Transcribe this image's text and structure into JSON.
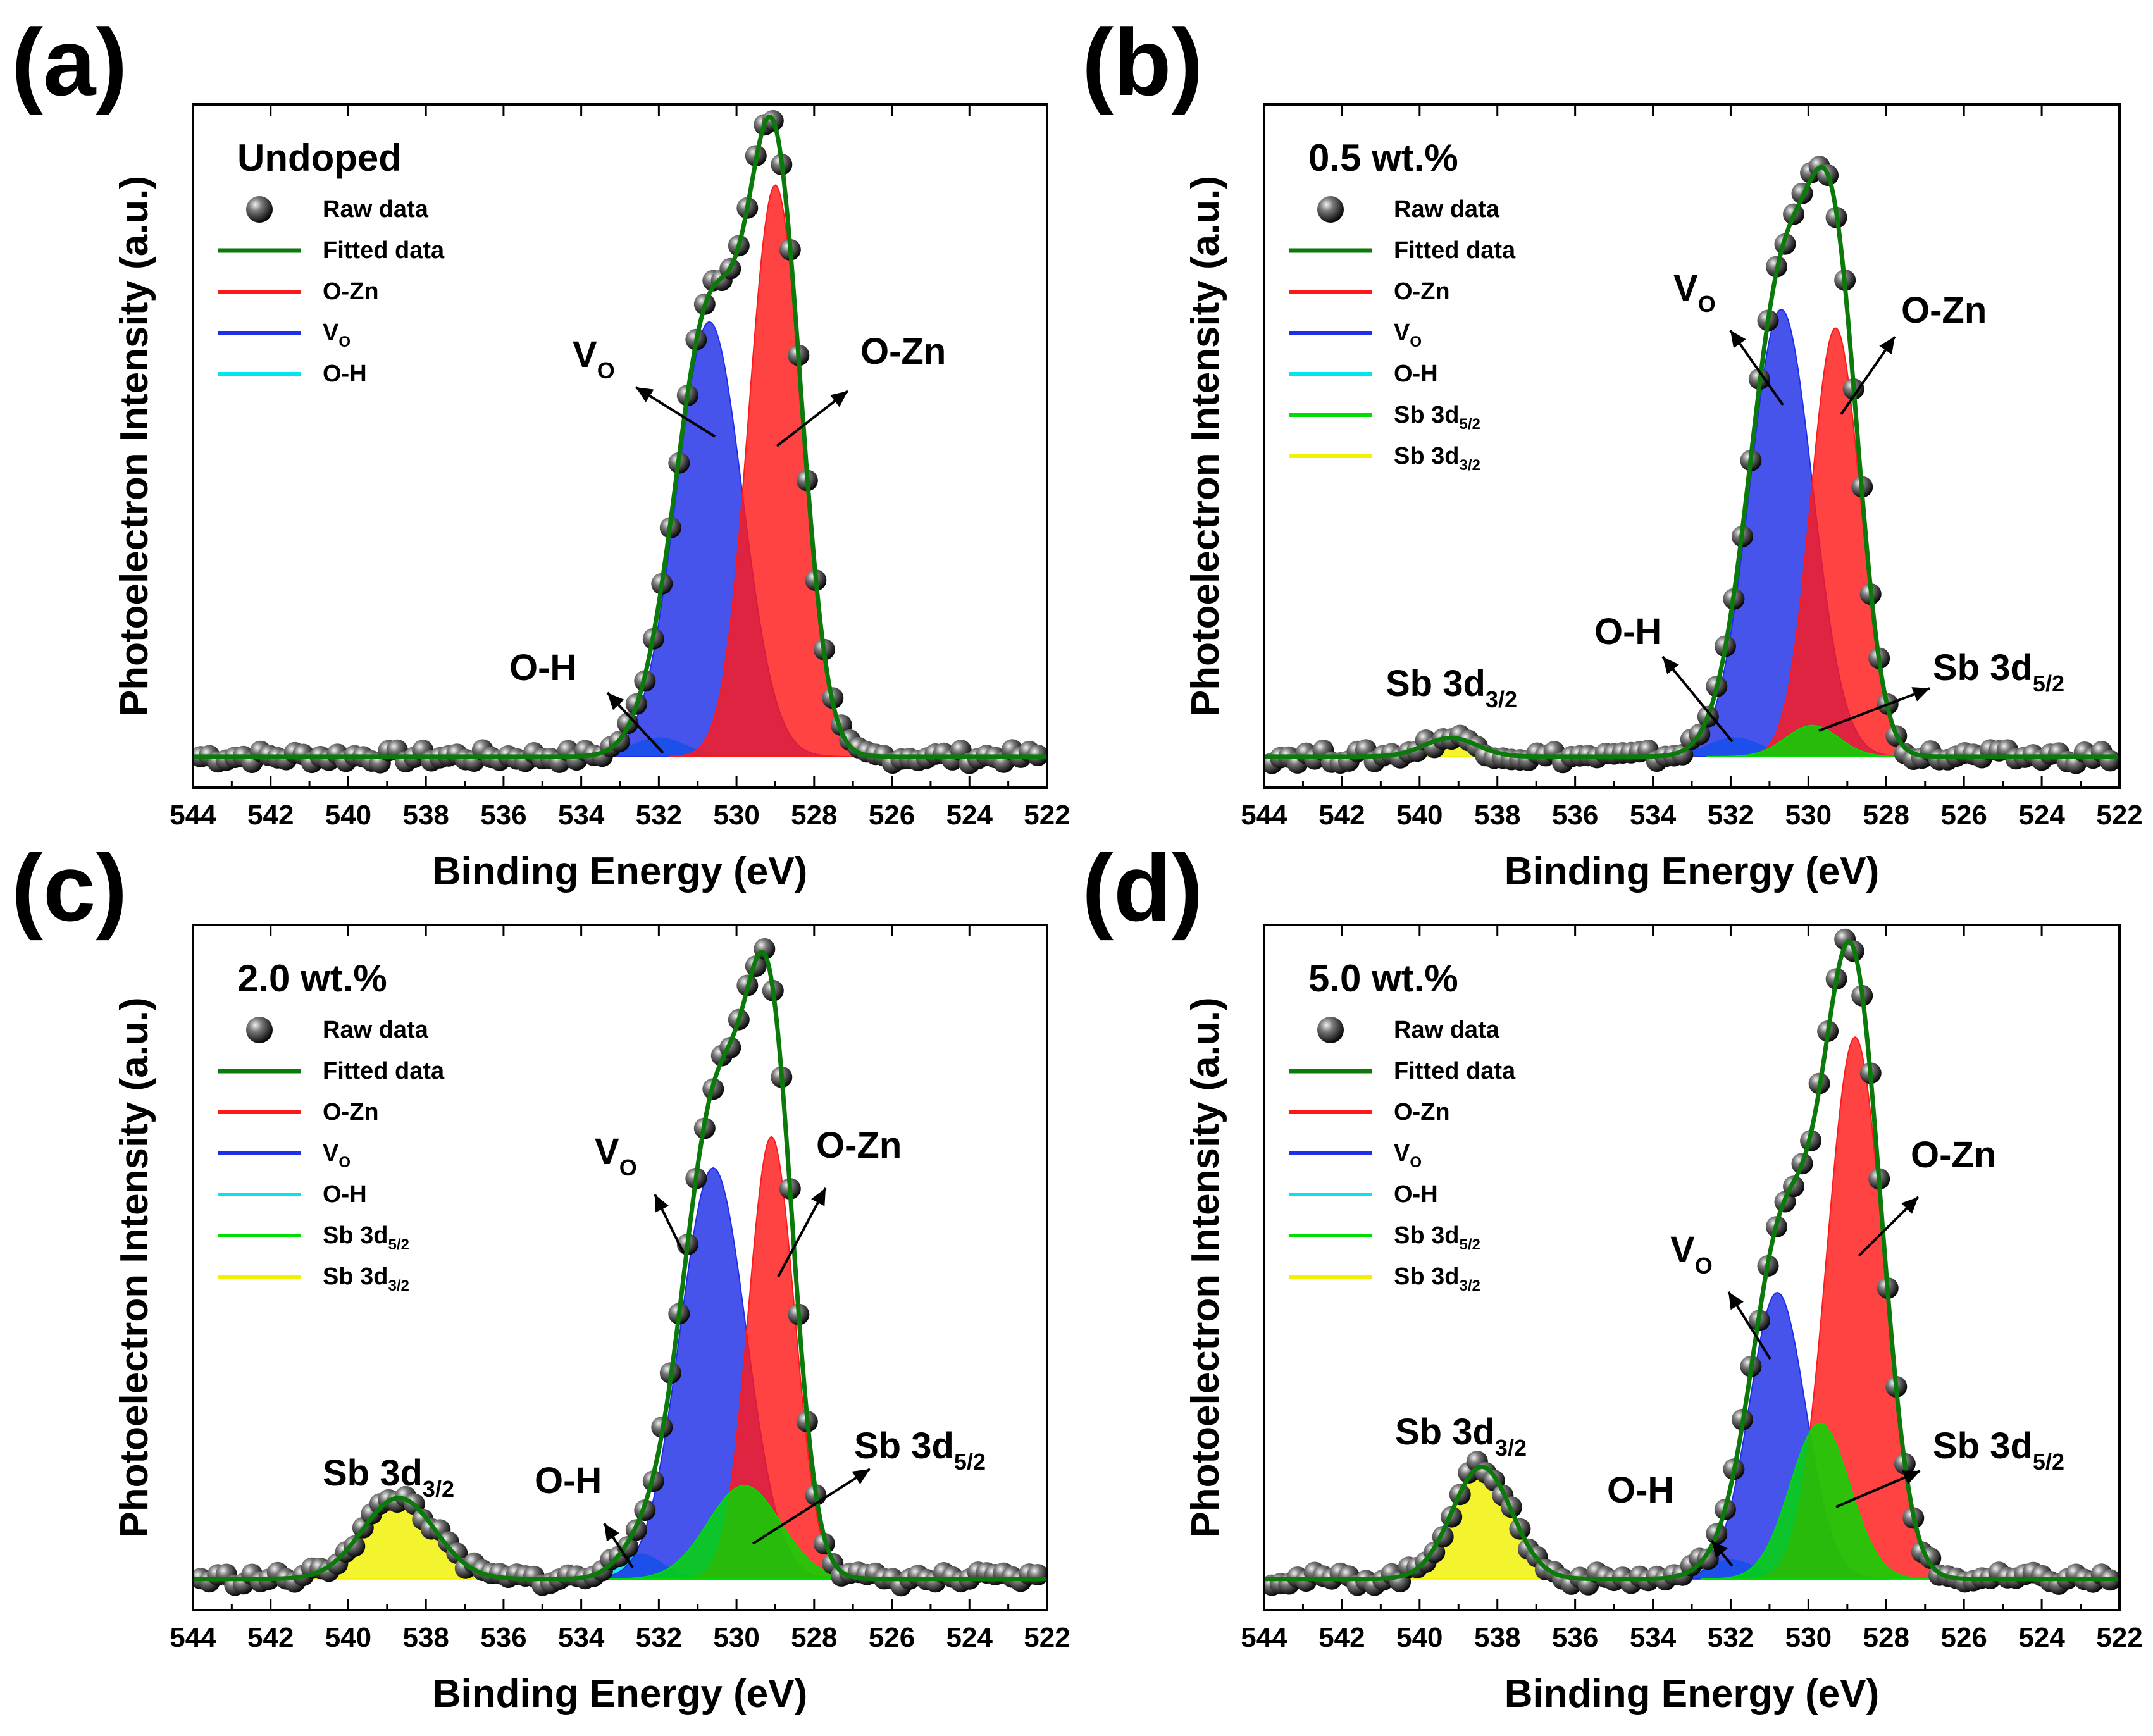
{
  "figure": {
    "x_axis_label": "Binding Energy (eV)",
    "y_axis_label": "Photoelectron Intensity (a.u.)",
    "colors": {
      "raw": "#1a1a1a",
      "fitted": "#0b7a0b",
      "o_zn": "#ff1a1a",
      "v_o": "#1f2ee8",
      "o_h": "#00e5ee",
      "sb_5_2": "#00dd00",
      "sb_3_2": "#f2f200"
    }
  },
  "chart_data": [
    {
      "panel": "(a)",
      "type": "line",
      "title": "Undoped",
      "xlabel": "Binding Energy (eV)",
      "ylabel": "Photoelectron Intensity (a.u.)",
      "xlim": [
        544,
        522
      ],
      "ylim": [
        -0.05,
        1.05
      ],
      "xticks": [
        "544",
        "542",
        "540",
        "538",
        "536",
        "534",
        "532",
        "530",
        "528",
        "526",
        "524",
        "522"
      ],
      "legend": [
        {
          "key": "raw",
          "label": "Raw data",
          "kind": "marker"
        },
        {
          "key": "fitted",
          "label": "Fitted data",
          "kind": "line"
        },
        {
          "key": "o_zn",
          "label": "O-Zn",
          "kind": "line"
        },
        {
          "key": "v_o",
          "label": "V",
          "sub": "O",
          "kind": "line"
        },
        {
          "key": "o_h",
          "label": "O-H",
          "kind": "line"
        }
      ],
      "components": [
        {
          "key": "o_zn",
          "name": "O-Zn",
          "center": 529.0,
          "fwhm": 1.6,
          "height": 0.92
        },
        {
          "key": "v_o",
          "name": "VO",
          "center": 530.7,
          "fwhm": 2.0,
          "height": 0.7
        },
        {
          "key": "o_h",
          "name": "O-H",
          "center": 532.0,
          "fwhm": 1.6,
          "height": 0.03
        }
      ],
      "annotations": [
        {
          "text": "V",
          "sub": "O"
        },
        {
          "text": "O-Zn",
          "sub": ""
        },
        {
          "text": "O-H",
          "sub": ""
        }
      ]
    },
    {
      "panel": "(b)",
      "type": "line",
      "title": "0.5 wt.%",
      "xlabel": "Binding Energy (eV)",
      "ylabel": "Photoelectron Intensity (a.u.)",
      "xlim": [
        544,
        522
      ],
      "ylim": [
        -0.05,
        1.05
      ],
      "xticks": [
        "544",
        "542",
        "540",
        "538",
        "536",
        "534",
        "532",
        "530",
        "528",
        "526",
        "524",
        "522"
      ],
      "legend": [
        {
          "key": "raw",
          "label": "Raw data",
          "kind": "marker"
        },
        {
          "key": "fitted",
          "label": "Fitted data",
          "kind": "line"
        },
        {
          "key": "o_zn",
          "label": "O-Zn",
          "kind": "line"
        },
        {
          "key": "v_o",
          "label": "V",
          "sub": "O",
          "kind": "line"
        },
        {
          "key": "o_h",
          "label": "O-H",
          "kind": "line"
        },
        {
          "key": "sb_5_2",
          "label": "Sb 3d",
          "sub": "5/2",
          "kind": "line"
        },
        {
          "key": "sb_3_2",
          "label": "Sb 3d",
          "sub": "3/2",
          "kind": "line"
        }
      ],
      "components": [
        {
          "key": "v_o",
          "name": "VO",
          "center": 530.7,
          "fwhm": 1.9,
          "height": 0.72
        },
        {
          "key": "o_zn",
          "name": "O-Zn",
          "center": 529.3,
          "fwhm": 1.5,
          "height": 0.69
        },
        {
          "key": "o_h",
          "name": "O-H",
          "center": 531.9,
          "fwhm": 1.6,
          "height": 0.03
        },
        {
          "key": "sb_5_2",
          "name": "Sb 3d5/2",
          "center": 529.9,
          "fwhm": 1.6,
          "height": 0.05
        },
        {
          "key": "sb_3_2",
          "name": "Sb 3d3/2",
          "center": 539.2,
          "fwhm": 1.6,
          "height": 0.03
        }
      ],
      "annotations": [
        {
          "text": "V",
          "sub": "O"
        },
        {
          "text": "O-Zn",
          "sub": ""
        },
        {
          "text": "O-H",
          "sub": ""
        },
        {
          "text": "Sb 3d",
          "sub": "5/2"
        },
        {
          "text": "Sb 3d",
          "sub": "3/2"
        }
      ]
    },
    {
      "panel": "(c)",
      "type": "line",
      "title": "2.0 wt.%",
      "xlabel": "Binding Energy (eV)",
      "ylabel": "Photoelectron Intensity (a.u.)",
      "xlim": [
        544,
        522
      ],
      "ylim": [
        -0.05,
        1.05
      ],
      "xticks": [
        "544",
        "542",
        "540",
        "538",
        "536",
        "534",
        "532",
        "530",
        "528",
        "526",
        "524",
        "522"
      ],
      "legend": [
        {
          "key": "raw",
          "label": "Raw data",
          "kind": "marker"
        },
        {
          "key": "fitted",
          "label": "Fitted data",
          "kind": "line"
        },
        {
          "key": "o_zn",
          "label": "O-Zn",
          "kind": "line"
        },
        {
          "key": "v_o",
          "label": "V",
          "sub": "O",
          "kind": "line"
        },
        {
          "key": "o_h",
          "label": "O-H",
          "kind": "line"
        },
        {
          "key": "sb_5_2",
          "label": "Sb 3d",
          "sub": "5/2",
          "kind": "line"
        },
        {
          "key": "sb_3_2",
          "label": "Sb 3d",
          "sub": "3/2",
          "kind": "line"
        }
      ],
      "components": [
        {
          "key": "v_o",
          "name": "VO",
          "center": 530.6,
          "fwhm": 2.0,
          "height": 0.66
        },
        {
          "key": "o_zn",
          "name": "O-Zn",
          "center": 529.1,
          "fwhm": 1.4,
          "height": 0.71
        },
        {
          "key": "o_h",
          "name": "O-H",
          "center": 532.5,
          "fwhm": 1.4,
          "height": 0.04
        },
        {
          "key": "sb_5_2",
          "name": "Sb 3d5/2",
          "center": 529.8,
          "fwhm": 2.2,
          "height": 0.15
        },
        {
          "key": "sb_3_2",
          "name": "Sb 3d3/2",
          "center": 538.7,
          "fwhm": 2.2,
          "height": 0.13
        }
      ],
      "annotations": [
        {
          "text": "V",
          "sub": "O"
        },
        {
          "text": "O-Zn",
          "sub": ""
        },
        {
          "text": "O-H",
          "sub": ""
        },
        {
          "text": "Sb 3d",
          "sub": "5/2"
        },
        {
          "text": "Sb 3d",
          "sub": "3/2"
        }
      ]
    },
    {
      "panel": "(d)",
      "type": "line",
      "title": "5.0 wt.%",
      "xlabel": "Binding Energy (eV)",
      "ylabel": "Photoelectron Intensity (a.u.)",
      "xlim": [
        544,
        522
      ],
      "ylim": [
        -0.05,
        1.05
      ],
      "xticks": [
        "544",
        "542",
        "540",
        "538",
        "536",
        "534",
        "532",
        "530",
        "528",
        "526",
        "524",
        "522"
      ],
      "legend": [
        {
          "key": "raw",
          "label": "Raw data",
          "kind": "marker"
        },
        {
          "key": "fitted",
          "label": "Fitted data",
          "kind": "line"
        },
        {
          "key": "o_zn",
          "label": "O-Zn",
          "kind": "line"
        },
        {
          "key": "v_o",
          "label": "V",
          "sub": "O",
          "kind": "line"
        },
        {
          "key": "o_h",
          "label": "O-H",
          "kind": "line"
        },
        {
          "key": "sb_5_2",
          "label": "Sb 3d",
          "sub": "5/2",
          "kind": "line"
        },
        {
          "key": "sb_3_2",
          "label": "Sb 3d",
          "sub": "3/2",
          "kind": "line"
        }
      ],
      "components": [
        {
          "key": "v_o",
          "name": "VO",
          "center": 530.8,
          "fwhm": 1.7,
          "height": 0.46
        },
        {
          "key": "o_zn",
          "name": "O-Zn",
          "center": 528.8,
          "fwhm": 1.7,
          "height": 0.87
        },
        {
          "key": "o_h",
          "name": "O-H",
          "center": 532.0,
          "fwhm": 1.6,
          "height": 0.03
        },
        {
          "key": "sb_5_2",
          "name": "Sb 3d5/2",
          "center": 529.7,
          "fwhm": 1.8,
          "height": 0.25
        },
        {
          "key": "sb_3_2",
          "name": "Sb 3d3/2",
          "center": 538.4,
          "fwhm": 1.8,
          "height": 0.18
        }
      ],
      "annotations": [
        {
          "text": "V",
          "sub": "O"
        },
        {
          "text": "O-Zn",
          "sub": ""
        },
        {
          "text": "O-H",
          "sub": ""
        },
        {
          "text": "Sb 3d",
          "sub": "5/2"
        },
        {
          "text": "Sb 3d",
          "sub": "3/2"
        }
      ]
    }
  ]
}
